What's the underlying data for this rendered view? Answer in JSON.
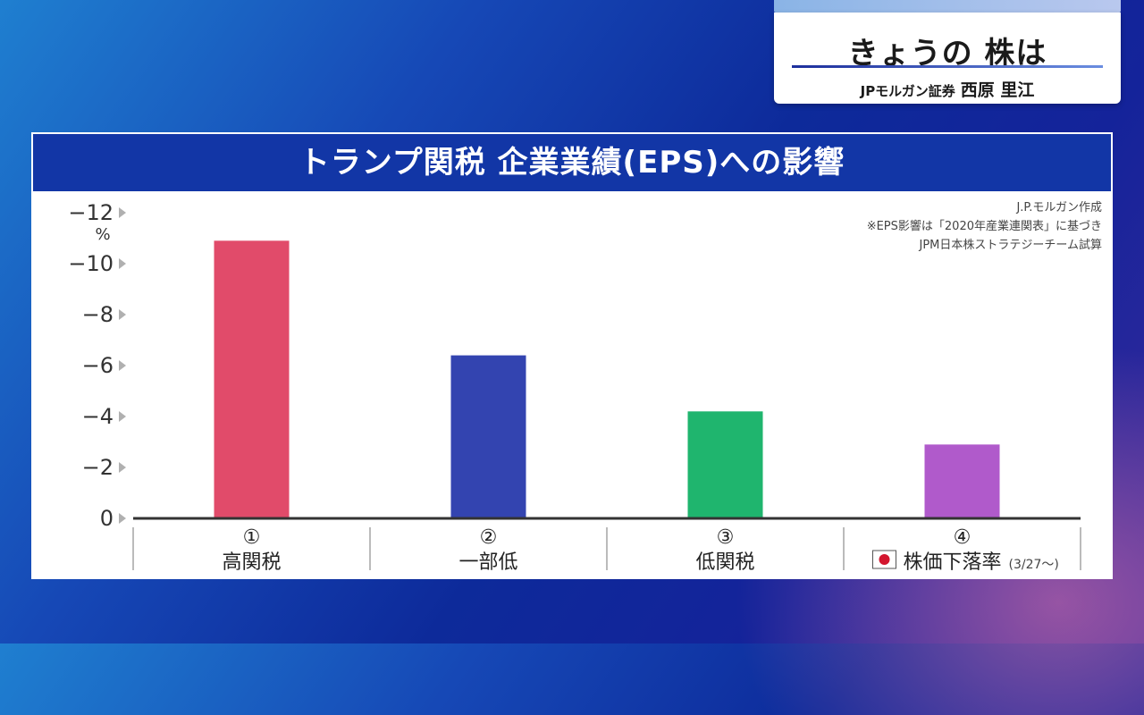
{
  "caption": {
    "title": "きょうの 株は",
    "firm": "JPモルガン証券",
    "person": "西原 里江"
  },
  "panel": {
    "title": "トランプ関税 企業業績(EPS)への影響",
    "notes": [
      "J.P.モルガン作成",
      "※EPS影響は「2020年産業連関表」に基づき",
      "JPM日本株ストラテジーチーム試算"
    ]
  },
  "chart_data": {
    "type": "bar",
    "unit": "%",
    "y_ticks": [
      "−12",
      "−10",
      "−8",
      "−6",
      "−4",
      "−2",
      "0"
    ],
    "ylim": [
      0,
      -12
    ],
    "grid": false,
    "categories": [
      {
        "num": "①",
        "label": "高関税",
        "value": -10.9,
        "color": "#e14b6a"
      },
      {
        "num": "②",
        "label": "一部低",
        "value": -6.4,
        "color": "#3344b0"
      },
      {
        "num": "③",
        "label": "低関税",
        "value": -4.2,
        "color": "#1fb56e"
      },
      {
        "num": "④",
        "label": "株価下落率",
        "suffix": "(3/27〜)",
        "value": -2.9,
        "color": "#b05acb"
      }
    ]
  }
}
